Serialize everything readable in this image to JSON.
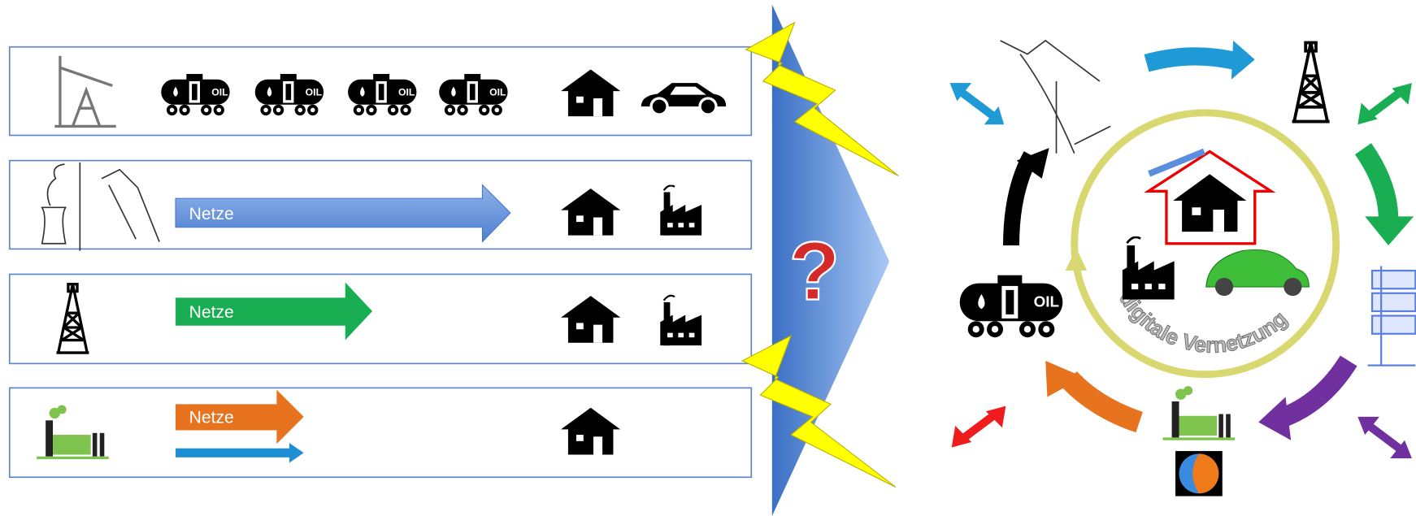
{
  "rows": [
    {
      "tank_labels": [
        "OIL",
        "OIL",
        "OIL",
        "OIL"
      ]
    },
    {
      "arrow_label": "Netze"
    },
    {
      "arrow_label": "Netze"
    },
    {
      "arrow_label": "Netze"
    }
  ],
  "question": "?",
  "cycle": {
    "tank_label": "OIL",
    "circle_label": "digitale Vernetzung"
  }
}
